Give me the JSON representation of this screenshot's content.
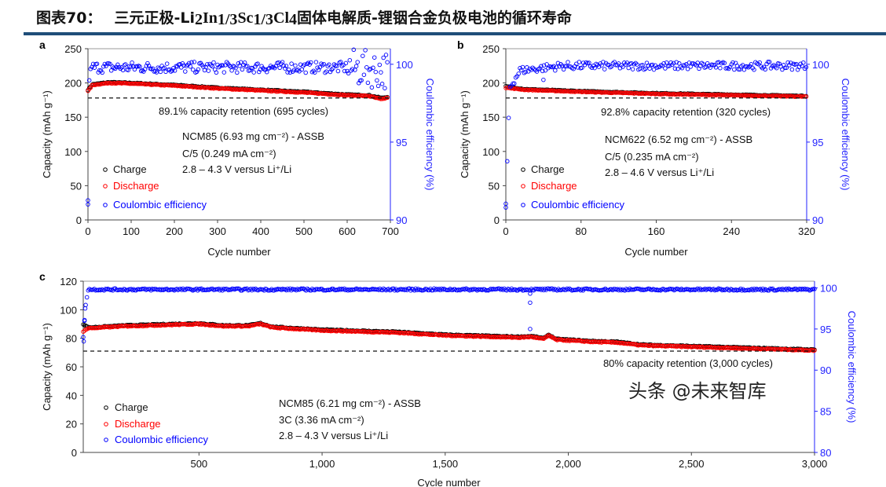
{
  "title": {
    "label": "图表70：",
    "pre": "三元正极-Li",
    "s1": "2",
    "m1": "In",
    "s2": "1/3",
    "m2": "Sc",
    "s3": "1/3",
    "m3": "Cl",
    "s4": "4",
    "post": "固体电解质-锂铟合金负极电池的循环寿命"
  },
  "watermark": "头条 @未来智库",
  "chart_data": [
    {
      "type": "scatter",
      "panel": "a",
      "xlabel": "Cycle number",
      "ylabel": "Capacity (mAh g⁻¹)",
      "y2label": "Coulombic efficiency (%)",
      "xlim": [
        0,
        700
      ],
      "ylim": [
        0,
        250
      ],
      "y2lim": [
        90,
        101
      ],
      "xticks": [
        0,
        100,
        200,
        300,
        400,
        500,
        600,
        700
      ],
      "xtick_labels": [
        "0",
        "100",
        "200",
        "300",
        "400",
        "500",
        "600",
        "700"
      ],
      "yticks": [
        0,
        50,
        100,
        150,
        200,
        250
      ],
      "ytick_labels": [
        "0",
        "50",
        "100",
        "150",
        "200",
        "250"
      ],
      "y2ticks": [
        90,
        95,
        100
      ],
      "y2tick_labels": [
        "90",
        "95",
        "100"
      ],
      "retention_line": 178,
      "retention_text": "89.1% capacity retention (695 cycles)",
      "annotations": [
        "NCM85 (6.93 mg cm⁻²) - ASSB",
        "C/5 (0.249 mA cm⁻²)",
        "2.8 – 4.3 V versus Li⁺/Li"
      ],
      "legend": [
        "Charge",
        "Discharge",
        "Coulombic efficiency"
      ],
      "series": [
        {
          "name": "Charge",
          "color": "#000000",
          "axis": "left",
          "points": [
            [
              0,
              190
            ],
            [
              10,
              198
            ],
            [
              50,
              201
            ],
            [
              100,
              200
            ],
            [
              200,
              197
            ],
            [
              300,
              193
            ],
            [
              400,
              190
            ],
            [
              500,
              187
            ],
            [
              600,
              183
            ],
            [
              650,
              182
            ],
            [
              680,
              178
            ],
            [
              695,
              180
            ]
          ]
        },
        {
          "name": "Discharge",
          "color": "#ff0000",
          "axis": "left",
          "points": [
            [
              0,
              188
            ],
            [
              10,
              197
            ],
            [
              50,
              200
            ],
            [
              100,
              199
            ],
            [
              200,
              196
            ],
            [
              300,
              192
            ],
            [
              400,
              189
            ],
            [
              500,
              186
            ],
            [
              600,
              182
            ],
            [
              650,
              181
            ],
            [
              680,
              176
            ],
            [
              695,
              179
            ]
          ]
        },
        {
          "name": "Coulombic efficiency",
          "color": "#0000ff",
          "axis": "right",
          "points": [
            [
              0,
              91
            ],
            [
              3,
              99.2
            ],
            [
              10,
              99.8
            ],
            [
              600,
              99.8
            ],
            [
              695,
              99.6
            ]
          ],
          "outliers": [
            [
              0,
              91
            ]
          ]
        }
      ]
    },
    {
      "type": "scatter",
      "panel": "b",
      "xlabel": "Cycle number",
      "ylabel": "Capacity (mAh g⁻¹)",
      "y2label": "Coulombic efficiency (%)",
      "xlim": [
        0,
        320
      ],
      "ylim": [
        0,
        250
      ],
      "y2lim": [
        90,
        101
      ],
      "xticks": [
        0,
        80,
        160,
        240,
        320
      ],
      "xtick_labels": [
        "0",
        "80",
        "160",
        "240",
        "320"
      ],
      "yticks": [
        0,
        50,
        100,
        150,
        200,
        250
      ],
      "ytick_labels": [
        "0",
        "50",
        "100",
        "150",
        "200",
        "250"
      ],
      "y2ticks": [
        90,
        95,
        100
      ],
      "y2tick_labels": [
        "90",
        "95",
        "100"
      ],
      "retention_line": 178,
      "retention_text": "92.8% capacity retention (320 cycles)",
      "annotations": [
        "NCM622 (6.52 mg cm⁻²) - ASSB",
        "C/5 (0.235 mA cm⁻²)",
        "2.8 – 4.6 V versus Li⁺/Li"
      ],
      "legend": [
        "Charge",
        "Discharge",
        "Coulombic efficiency"
      ],
      "series": [
        {
          "name": "Charge",
          "color": "#000000",
          "axis": "left",
          "points": [
            [
              0,
              195
            ],
            [
              20,
              191
            ],
            [
              80,
              188
            ],
            [
              160,
              185
            ],
            [
              240,
              183
            ],
            [
              320,
              181
            ]
          ]
        },
        {
          "name": "Discharge",
          "color": "#ff0000",
          "axis": "left",
          "points": [
            [
              0,
              193
            ],
            [
              20,
              190
            ],
            [
              80,
              187
            ],
            [
              160,
              184
            ],
            [
              240,
              182
            ],
            [
              320,
              180
            ]
          ]
        },
        {
          "name": "Coulombic efficiency",
          "color": "#0000ff",
          "axis": "right",
          "points": [
            [
              0,
              90.8
            ],
            [
              4,
              98.5
            ],
            [
              15,
              99.6
            ],
            [
              60,
              99.9
            ],
            [
              320,
              99.9
            ]
          ],
          "outliers": [
            [
              0,
              90.8
            ],
            [
              40,
              99
            ]
          ]
        }
      ]
    },
    {
      "type": "scatter",
      "panel": "c",
      "xlabel": "Cycle number",
      "ylabel": "Capacity (mAh g⁻¹)",
      "y2label": "Coulombic efficiency (%)",
      "xlim": [
        30,
        3000
      ],
      "ylim": [
        0,
        120
      ],
      "y2lim": [
        80,
        101
      ],
      "xticks": [
        500,
        1000,
        1500,
        2000,
        2500,
        3000
      ],
      "xtick_labels": [
        "500",
        "1,000",
        "1,500",
        "2,000",
        "2,500",
        "3,000"
      ],
      "yticks": [
        0,
        20,
        40,
        60,
        80,
        100,
        120
      ],
      "ytick_labels": [
        "0",
        "20",
        "40",
        "60",
        "80",
        "100",
        "120"
      ],
      "y2ticks": [
        80,
        85,
        90,
        95,
        100
      ],
      "y2tick_labels": [
        "80",
        "85",
        "90",
        "95",
        "100"
      ],
      "retention_line": 71,
      "retention_text": "80% capacity retention (3,000 cycles)",
      "annotations": [
        "NCM85 (6.21 mg cm⁻²) - ASSB",
        "3C (3.36 mA cm⁻²)",
        "2.8 – 4.3 V versus Li⁺/Li"
      ],
      "legend": [
        "Charge",
        "Discharge",
        "Coulombic efficiency"
      ],
      "series": [
        {
          "name": "Charge",
          "color": "#000000",
          "axis": "left",
          "points": [
            [
              30,
              90
            ],
            [
              50,
              87.5
            ],
            [
              200,
              89
            ],
            [
              500,
              90.5
            ],
            [
              600,
              89
            ],
            [
              700,
              89
            ],
            [
              750,
              90.5
            ],
            [
              800,
              88
            ],
            [
              1000,
              86
            ],
            [
              1300,
              84.5
            ],
            [
              1500,
              82.5
            ],
            [
              1800,
              81
            ],
            [
              1850,
              81.5
            ],
            [
              1900,
              80
            ],
            [
              1920,
              82.5
            ],
            [
              1950,
              79.5
            ],
            [
              2100,
              78
            ],
            [
              2200,
              77.5
            ],
            [
              2300,
              75.5
            ],
            [
              2500,
              74.5
            ],
            [
              2700,
              73.5
            ],
            [
              2900,
              72.5
            ],
            [
              3000,
              72
            ]
          ]
        },
        {
          "name": "Discharge",
          "color": "#ff0000",
          "axis": "left",
          "points": [
            [
              30,
              85
            ],
            [
              50,
              87
            ],
            [
              200,
              88.5
            ],
            [
              500,
              90
            ],
            [
              600,
              88.5
            ],
            [
              700,
              88.5
            ],
            [
              750,
              90
            ],
            [
              800,
              87.5
            ],
            [
              1000,
              85.5
            ],
            [
              1300,
              84
            ],
            [
              1500,
              82
            ],
            [
              1800,
              80.5
            ],
            [
              1850,
              81
            ],
            [
              1900,
              79.5
            ],
            [
              1920,
              82
            ],
            [
              1950,
              79
            ],
            [
              2100,
              77.5
            ],
            [
              2200,
              77
            ],
            [
              2300,
              75
            ],
            [
              2500,
              74
            ],
            [
              2700,
              73
            ],
            [
              2900,
              72
            ],
            [
              3000,
              71.5
            ]
          ]
        },
        {
          "name": "Coulombic efficiency",
          "color": "#0000ff",
          "axis": "right",
          "points": [
            [
              30,
              94
            ],
            [
              40,
              98
            ],
            [
              50,
              99.8
            ],
            [
              3000,
              99.8
            ]
          ],
          "outliers": [
            [
              32,
              93.5
            ],
            [
              35,
              96
            ],
            [
              38,
              97.5
            ],
            [
              1845,
              98.2
            ],
            [
              1845,
              99.3
            ],
            [
              1845,
              95
            ]
          ]
        }
      ]
    }
  ]
}
